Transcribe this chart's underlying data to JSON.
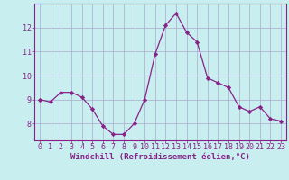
{
  "x": [
    0,
    1,
    2,
    3,
    4,
    5,
    6,
    7,
    8,
    9,
    10,
    11,
    12,
    13,
    14,
    15,
    16,
    17,
    18,
    19,
    20,
    21,
    22,
    23
  ],
  "y": [
    9.0,
    8.9,
    9.3,
    9.3,
    9.1,
    8.6,
    7.9,
    7.55,
    7.55,
    8.0,
    9.0,
    10.9,
    12.1,
    12.6,
    11.8,
    11.4,
    9.9,
    9.7,
    9.5,
    8.7,
    8.5,
    8.7,
    8.2,
    8.1
  ],
  "line_color": "#882288",
  "marker": "D",
  "marker_size": 2.2,
  "bg_color": "#c8eef0",
  "grid_color": "#aaaacc",
  "xlabel": "Windchill (Refroidissement éolien,°C)",
  "xlabel_fontsize": 6.5,
  "tick_fontsize": 6.0,
  "tick_color": "#882288",
  "label_color": "#882288",
  "ylim": [
    7.3,
    13.0
  ],
  "yticks": [
    8,
    9,
    10,
    11,
    12
  ],
  "spine_color": "#882288",
  "linewidth": 0.9
}
